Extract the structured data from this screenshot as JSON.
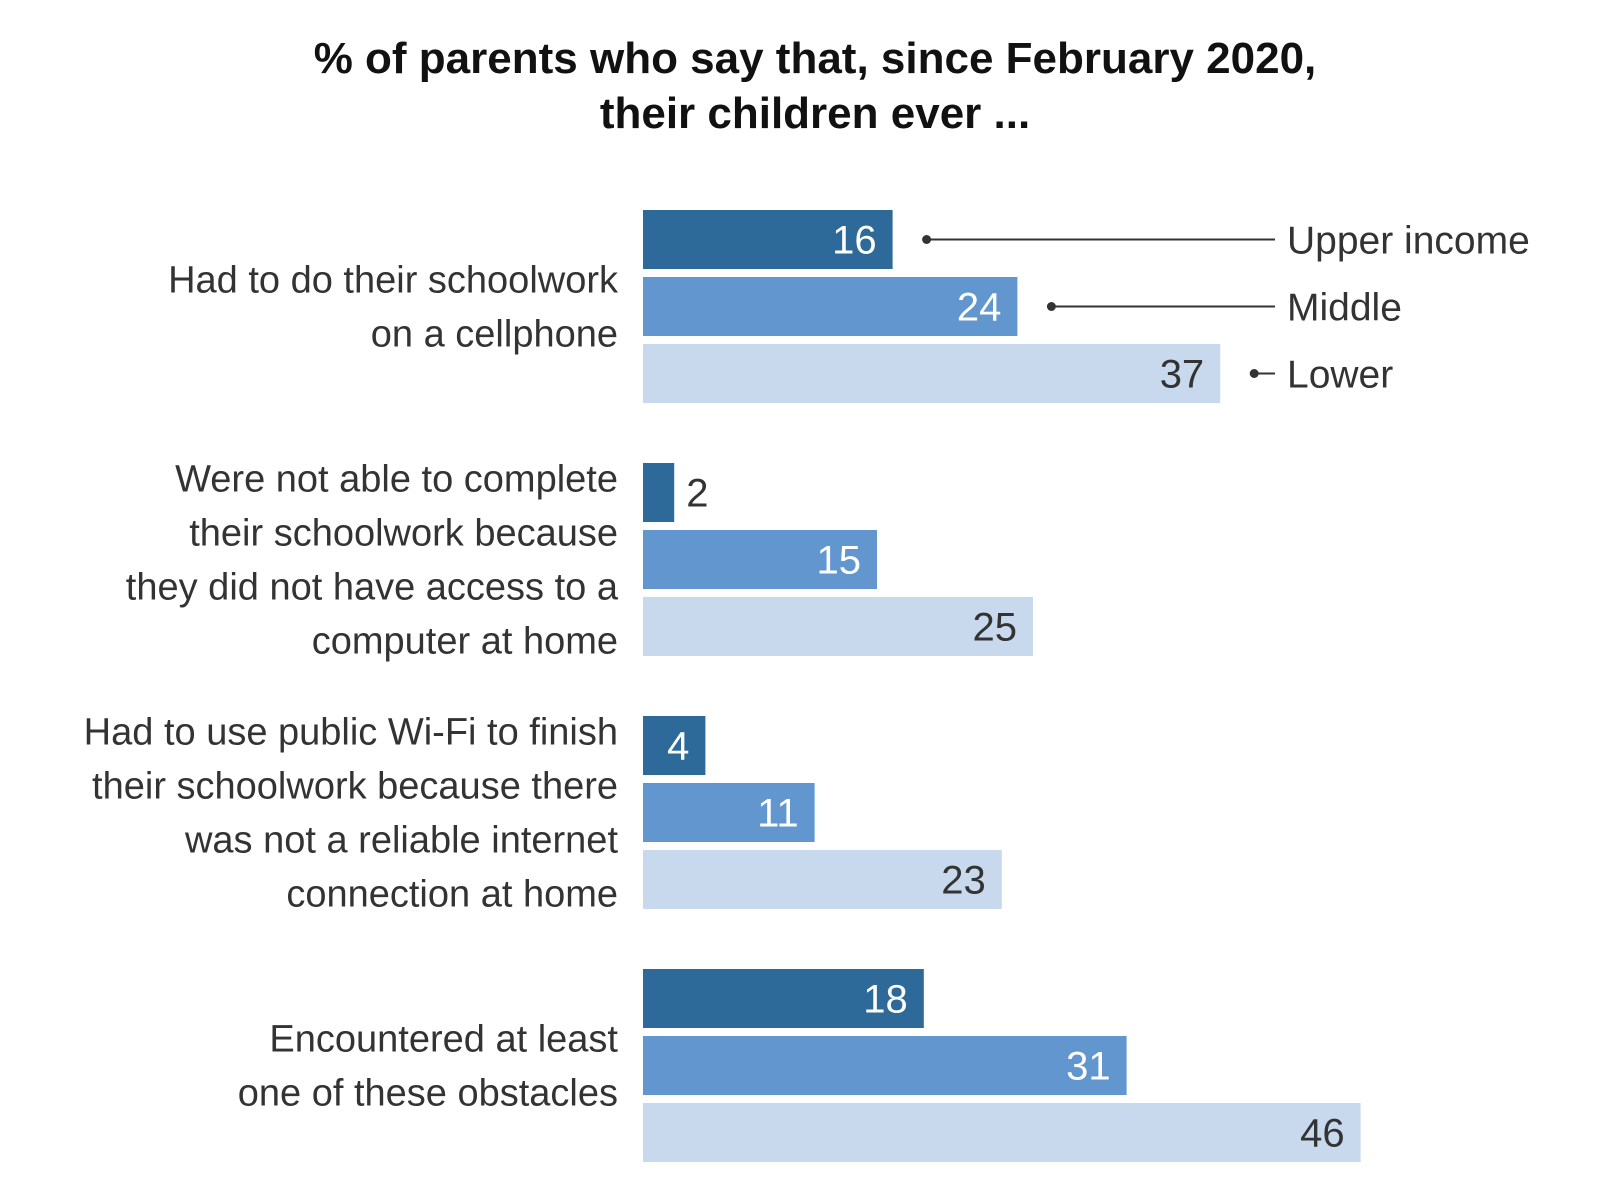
{
  "chart_data": {
    "type": "bar",
    "orientation": "horizontal",
    "title": "% of parents who say that, since February 2020,\ntheir children ever ...",
    "categories": [
      "Had to do their schoolwork\non a cellphone",
      "Were not able to complete\ntheir schoolwork because\nthey did not have access to a\ncomputer at home",
      "Had to use public Wi-Fi to finish\ntheir schoolwork because there\nwas not a reliable internet\nconnection at home",
      "Encountered at least\none of these obstacles"
    ],
    "series": [
      {
        "name": "Upper income",
        "values": [
          16,
          2,
          4,
          18
        ],
        "color": "#2d6a9a"
      },
      {
        "name": "Middle",
        "values": [
          24,
          15,
          11,
          31
        ],
        "color": "#6196cf"
      },
      {
        "name": "Lower",
        "values": [
          37,
          25,
          23,
          46
        ],
        "color": "#c8d9ee"
      }
    ],
    "xlim": [
      0,
      46
    ],
    "xlabel": "",
    "ylabel": "",
    "grid": false,
    "legend": "right, direct labels on first group"
  }
}
